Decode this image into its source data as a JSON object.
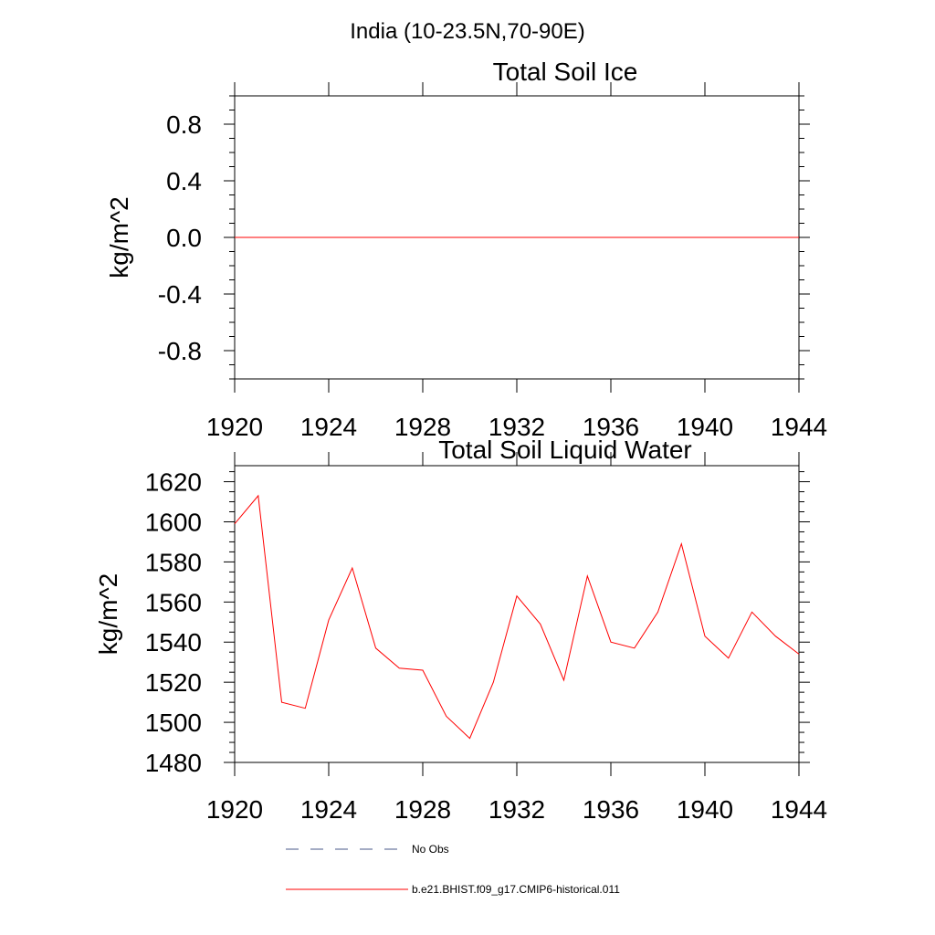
{
  "figure": {
    "title": "India (10-23.5N,70-90E)"
  },
  "chart_data": [
    {
      "type": "line",
      "title": "Total Soil Ice",
      "xlabel": "",
      "ylabel": "kg/m^2",
      "xlim": [
        1920,
        1944
      ],
      "ylim": [
        -1.0,
        1.0
      ],
      "xticks": [
        1920,
        1924,
        1928,
        1932,
        1936,
        1940,
        1944
      ],
      "xtick_labels": [
        "1920",
        "1924",
        "1928",
        "1932",
        "1936",
        "1940",
        "1944"
      ],
      "yticks": [
        0.8,
        0.4,
        0.0,
        -0.4,
        -0.8
      ],
      "ytick_labels": [
        "0.8",
        "0.4",
        "0.0",
        "-0.4",
        "-0.8"
      ],
      "grid": false,
      "series": [
        {
          "name": "b.e21.BHIST.f09_g17.CMIP6-historical.011",
          "color": "#ff0000",
          "x": [
            1920,
            1921,
            1922,
            1923,
            1924,
            1925,
            1926,
            1927,
            1928,
            1929,
            1930,
            1931,
            1932,
            1933,
            1934,
            1935,
            1936,
            1937,
            1938,
            1939,
            1940,
            1941,
            1942,
            1943,
            1944
          ],
          "values": [
            0,
            0,
            0,
            0,
            0,
            0,
            0,
            0,
            0,
            0,
            0,
            0,
            0,
            0,
            0,
            0,
            0,
            0,
            0,
            0,
            0,
            0,
            0,
            0,
            0
          ]
        }
      ]
    },
    {
      "type": "line",
      "title": "Total Soil Liquid Water",
      "xlabel": "",
      "ylabel": "kg/m^2",
      "xlim": [
        1920,
        1944
      ],
      "ylim": [
        1480,
        1628
      ],
      "xticks": [
        1920,
        1924,
        1928,
        1932,
        1936,
        1940,
        1944
      ],
      "xtick_labels": [
        "1920",
        "1924",
        "1928",
        "1932",
        "1936",
        "1940",
        "1944"
      ],
      "yticks": [
        1620,
        1600,
        1580,
        1560,
        1540,
        1520,
        1500,
        1480
      ],
      "ytick_labels": [
        "1620",
        "1600",
        "1580",
        "1560",
        "1540",
        "1520",
        "1500",
        "1480"
      ],
      "grid": false,
      "series": [
        {
          "name": "b.e21.BHIST.f09_g17.CMIP6-historical.011",
          "color": "#ff0000",
          "x": [
            1920,
            1921,
            1922,
            1923,
            1924,
            1925,
            1926,
            1927,
            1928,
            1929,
            1930,
            1931,
            1932,
            1933,
            1934,
            1935,
            1936,
            1937,
            1938,
            1939,
            1940,
            1941,
            1942,
            1943,
            1944
          ],
          "values": [
            1599,
            1613,
            1510,
            1507,
            1551,
            1577,
            1537,
            1527,
            1526,
            1503,
            1492,
            1520,
            1563,
            1549,
            1521,
            1573,
            1540,
            1537,
            1555,
            1589,
            1543,
            1532,
            1555,
            1543,
            1534
          ]
        }
      ]
    }
  ],
  "legend": {
    "position": "bottom",
    "entries": [
      {
        "label": "No Obs",
        "color": "#4a5a8a",
        "style": "dashed"
      },
      {
        "label": "b.e21.BHIST.f09_g17.CMIP6-historical.011",
        "color": "#ff0000",
        "style": "solid"
      }
    ]
  }
}
